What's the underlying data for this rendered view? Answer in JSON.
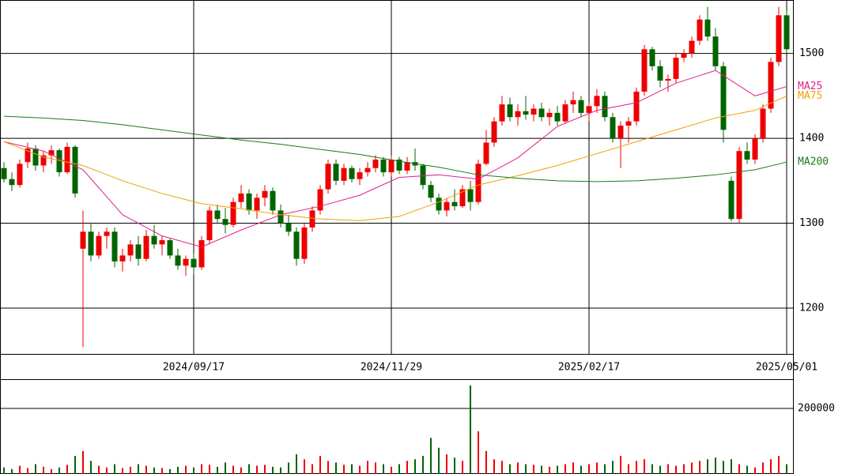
{
  "chart_data": {
    "type": "candlestick",
    "up_color": "#ee0000",
    "down_color": "#006400",
    "grid": true,
    "open": [
      1365,
      1352,
      1345,
      1372,
      1388,
      1368,
      1380,
      1386,
      1360,
      1390,
      1270,
      1290,
      1262,
      1285,
      1290,
      1255,
      1262,
      1275,
      1258,
      1285,
      1275,
      1280,
      1262,
      1250,
      1258,
      1248,
      1280,
      1315,
      1305,
      1298,
      1325,
      1335,
      1315,
      1330,
      1338,
      1315,
      1300,
      1290,
      1258,
      1295,
      1315,
      1340,
      1370,
      1350,
      1365,
      1352,
      1360,
      1365,
      1375,
      1360,
      1375,
      1362,
      1372,
      1368,
      1345,
      1330,
      1315,
      1325,
      1320,
      1340,
      1325,
      1370,
      1395,
      1420,
      1440,
      1425,
      1432,
      1428,
      1435,
      1425,
      1430,
      1420,
      1440,
      1445,
      1430,
      1438,
      1450,
      1425,
      1400,
      1415,
      1420,
      1455,
      1505,
      1485,
      1468,
      1470,
      1495,
      1500,
      1515,
      1540,
      1520,
      1485,
      1350,
      1305,
      1385,
      1375,
      1400,
      1435,
      1490,
      1545
    ],
    "high": [
      1372,
      1360,
      1375,
      1395,
      1392,
      1385,
      1392,
      1388,
      1395,
      1392,
      1315,
      1300,
      1290,
      1295,
      1295,
      1270,
      1280,
      1285,
      1292,
      1298,
      1285,
      1282,
      1270,
      1262,
      1265,
      1285,
      1320,
      1322,
      1318,
      1330,
      1345,
      1340,
      1335,
      1345,
      1342,
      1322,
      1310,
      1295,
      1300,
      1320,
      1345,
      1375,
      1375,
      1370,
      1368,
      1365,
      1372,
      1380,
      1378,
      1380,
      1378,
      1378,
      1388,
      1370,
      1350,
      1335,
      1330,
      1340,
      1345,
      1350,
      1375,
      1410,
      1425,
      1450,
      1448,
      1440,
      1450,
      1440,
      1442,
      1435,
      1438,
      1445,
      1455,
      1450,
      1442,
      1458,
      1455,
      1430,
      1420,
      1425,
      1460,
      1510,
      1508,
      1492,
      1475,
      1500,
      1505,
      1520,
      1545,
      1555,
      1530,
      1490,
      1355,
      1390,
      1395,
      1405,
      1440,
      1495,
      1555,
      1550
    ],
    "low": [
      1348,
      1338,
      1342,
      1365,
      1362,
      1360,
      1370,
      1355,
      1358,
      1330,
      1154,
      1255,
      1258,
      1270,
      1248,
      1243,
      1255,
      1250,
      1255,
      1270,
      1262,
      1258,
      1245,
      1238,
      1240,
      1245,
      1275,
      1300,
      1288,
      1295,
      1318,
      1310,
      1305,
      1320,
      1310,
      1295,
      1285,
      1250,
      1252,
      1290,
      1310,
      1335,
      1345,
      1345,
      1348,
      1345,
      1355,
      1360,
      1355,
      1355,
      1358,
      1358,
      1362,
      1340,
      1325,
      1310,
      1308,
      1315,
      1318,
      1315,
      1322,
      1368,
      1390,
      1415,
      1420,
      1415,
      1422,
      1420,
      1420,
      1415,
      1415,
      1418,
      1430,
      1425,
      1420,
      1430,
      1420,
      1395,
      1365,
      1395,
      1415,
      1450,
      1480,
      1460,
      1455,
      1465,
      1490,
      1495,
      1510,
      1515,
      1480,
      1395,
      1302,
      1300,
      1370,
      1370,
      1395,
      1430,
      1485,
      1500
    ],
    "close": [
      1352,
      1345,
      1370,
      1388,
      1368,
      1380,
      1386,
      1360,
      1390,
      1335,
      1290,
      1262,
      1285,
      1290,
      1255,
      1262,
      1275,
      1258,
      1285,
      1275,
      1280,
      1262,
      1250,
      1258,
      1248,
      1280,
      1315,
      1305,
      1298,
      1325,
      1335,
      1315,
      1330,
      1338,
      1315,
      1300,
      1290,
      1258,
      1295,
      1315,
      1340,
      1370,
      1350,
      1365,
      1352,
      1360,
      1365,
      1375,
      1360,
      1375,
      1362,
      1372,
      1368,
      1345,
      1330,
      1315,
      1325,
      1320,
      1340,
      1325,
      1370,
      1395,
      1420,
      1440,
      1425,
      1432,
      1428,
      1435,
      1425,
      1430,
      1420,
      1440,
      1445,
      1430,
      1438,
      1450,
      1425,
      1400,
      1415,
      1420,
      1455,
      1505,
      1485,
      1468,
      1470,
      1495,
      1500,
      1515,
      1540,
      1520,
      1485,
      1410,
      1305,
      1385,
      1375,
      1400,
      1435,
      1490,
      1545,
      1505
    ],
    "volume": [
      20000,
      15000,
      25000,
      18000,
      30000,
      22000,
      15000,
      20000,
      28000,
      55000,
      70000,
      40000,
      25000,
      20000,
      30000,
      18000,
      22000,
      30000,
      25000,
      20000,
      18000,
      15000,
      22000,
      25000,
      20000,
      30000,
      28000,
      22000,
      35000,
      25000,
      20000,
      30000,
      25000,
      28000,
      22000,
      20000,
      35000,
      60000,
      45000,
      30000,
      55000,
      40000,
      35000,
      28000,
      30000,
      25000,
      40000,
      35000,
      30000,
      22000,
      30000,
      40000,
      45000,
      55000,
      110000,
      80000,
      60000,
      50000,
      40000,
      270000,
      130000,
      70000,
      45000,
      40000,
      30000,
      35000,
      30000,
      28000,
      25000,
      22000,
      25000,
      30000,
      35000,
      25000,
      30000,
      35000,
      30000,
      40000,
      55000,
      30000,
      40000,
      45000,
      30000,
      25000,
      30000,
      25000,
      30000,
      35000,
      40000,
      45000,
      50000,
      40000,
      45000,
      30000,
      25000,
      20000,
      35000,
      45000,
      55000,
      30000
    ],
    "ma_x": [
      0,
      5,
      10,
      15,
      20,
      25,
      30,
      35,
      40,
      45,
      50,
      55,
      60,
      65,
      70,
      75,
      80,
      85,
      90,
      95,
      99
    ],
    "series": [
      {
        "name": "MA25",
        "color": "#e0208c",
        "values": [
          1396,
          1385,
          1363,
          1310,
          1285,
          1272,
          1292,
          1310,
          1320,
          1333,
          1354,
          1357,
          1352,
          1377,
          1414,
          1433,
          1442,
          1465,
          1480,
          1450,
          1461
        ]
      },
      {
        "name": "MA75",
        "color": "#f0a000",
        "values": [
          1396,
          1378,
          1368,
          1350,
          1335,
          1323,
          1317,
          1310,
          1305,
          1303,
          1308,
          1325,
          1345,
          1356,
          1368,
          1382,
          1396,
          1410,
          1424,
          1433,
          1450
        ]
      },
      {
        "name": "MA200",
        "color": "#1a7a1a",
        "values": [
          1426,
          1424,
          1421,
          1416,
          1410,
          1404,
          1398,
          1393,
          1387,
          1381,
          1373,
          1366,
          1357,
          1353,
          1350,
          1349,
          1350,
          1353,
          1357,
          1363,
          1372
        ]
      }
    ],
    "xlim": [
      -0.5,
      99.8
    ],
    "xticks": [
      {
        "value": 24,
        "label": "2024/09/17"
      },
      {
        "value": 49,
        "label": "2024/11/29"
      },
      {
        "value": 74,
        "label": "2025/02/17"
      },
      {
        "value": 99,
        "label": "2025/05/01"
      }
    ],
    "ylim": [
      1146,
      1563
    ],
    "yticks": [
      1200,
      1300,
      1400,
      1500
    ],
    "volume_ylim": [
      0,
      289000
    ],
    "volume_yticks": [
      200000
    ]
  }
}
